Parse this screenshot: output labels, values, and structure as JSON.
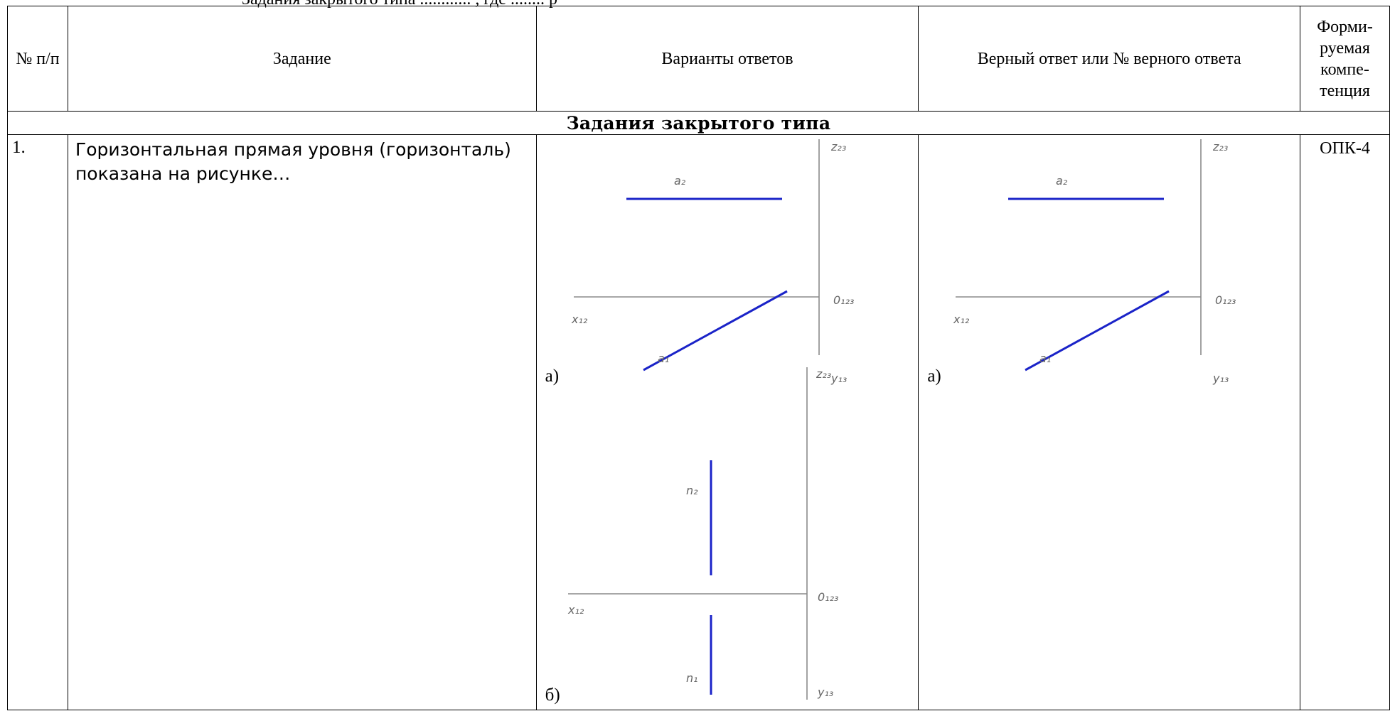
{
  "top_fragment": "Задания закрытого типа ............ , где ........ р",
  "header": {
    "num": "№ п/п",
    "task": "Задание",
    "options": "Варианты ответов",
    "answer": "Верный ответ или № верного ответа",
    "competence": "Форми-руемая компе-тенция"
  },
  "section_title": "Задания закрытого типа",
  "rows": [
    {
      "num": "1.",
      "task": "Горизонтальная прямая уровня (горизонталь) показана на рисунке…",
      "option_a_label": "а)",
      "option_b_label": "б)",
      "answer_label": "а)",
      "competence": "ОПК-4"
    }
  ],
  "figure_labels": {
    "fig_a": {
      "top_line": "a₂",
      "bottom_line": "a₁",
      "z": "z₂₃",
      "o": "0₁₂₃",
      "x": "x₁₂",
      "y": "y₁₃"
    },
    "fig_b": {
      "top_line": "n₂",
      "bottom_line": "n₁",
      "z": "z₂₃",
      "o": "0₁₂₃",
      "x": "x₁₂",
      "y": "y₁₃"
    }
  },
  "colors": {
    "line": "#1a23c8",
    "axis": "#8a8a8a",
    "border": "#000000"
  }
}
